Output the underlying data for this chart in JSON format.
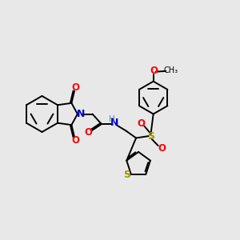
{
  "bg": "#e8e8e8",
  "bc": "#000000",
  "N_col": "#0000cc",
  "O_col": "#ff0000",
  "S_col": "#999900",
  "H_col": "#5f8f8f",
  "lw": 1.4,
  "dbg": 0.055,
  "xlim": [
    0,
    10
  ],
  "ylim": [
    0,
    10
  ],
  "figsize": [
    3.0,
    3.0
  ],
  "dpi": 100
}
